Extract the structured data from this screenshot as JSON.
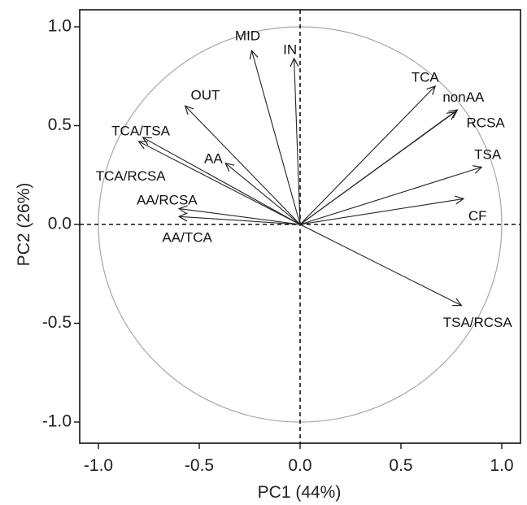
{
  "chart_data": {
    "type": "scatter",
    "subtype": "pca-biplot-loadings",
    "title": "",
    "xlabel": "PC1 (44%)",
    "ylabel": "PC2 (26%)",
    "xlim": [
      -1.0,
      1.0
    ],
    "ylim": [
      -1.0,
      1.0
    ],
    "xticks": [
      -1.0,
      -0.5,
      0.0,
      0.5,
      1.0
    ],
    "yticks": [
      1.0,
      0.5,
      0.0,
      -0.5,
      -1.0
    ],
    "xtick_labels": [
      "-1.0",
      "-0.5",
      "0.0",
      "0.5",
      "1.0"
    ],
    "ytick_labels": [
      "1.0",
      "0.5",
      "0.0",
      "-0.5",
      "-1.0"
    ],
    "correlation_circle_radius": 1.0,
    "reference_lines": [
      0,
      0
    ],
    "grid": false,
    "legend": "none",
    "vectors": [
      {
        "label": "MID",
        "x": -0.24,
        "y": 0.88
      },
      {
        "label": "IN",
        "x": -0.03,
        "y": 0.84
      },
      {
        "label": "OUT",
        "x": -0.57,
        "y": 0.6
      },
      {
        "label": "TCA/TSA",
        "x": -0.8,
        "y": 0.42
      },
      {
        "label": "TCA/RCSA",
        "x": -0.78,
        "y": 0.44
      },
      {
        "label": "AA",
        "x": -0.37,
        "y": 0.31
      },
      {
        "label": "AA/RCSA",
        "x": -0.6,
        "y": 0.08
      },
      {
        "label": "AA/TCA",
        "x": -0.6,
        "y": 0.04
      },
      {
        "label": "TCA",
        "x": 0.67,
        "y": 0.7
      },
      {
        "label": "nonAA",
        "x": 0.78,
        "y": 0.58
      },
      {
        "label": "RCSA",
        "x": 0.77,
        "y": 0.57
      },
      {
        "label": "TSA",
        "x": 0.9,
        "y": 0.29
      },
      {
        "label": "CF",
        "x": 0.81,
        "y": 0.13
      },
      {
        "label": "TSA/RCSA",
        "x": 0.8,
        "y": -0.41
      }
    ],
    "labels": [
      {
        "text": "MID",
        "x": -0.26,
        "y": 0.95,
        "anchor": "middle"
      },
      {
        "text": "IN",
        "x": -0.05,
        "y": 0.88,
        "anchor": "middle"
      },
      {
        "text": "OUT",
        "x": -0.47,
        "y": 0.65,
        "anchor": "middle"
      },
      {
        "text": "TCA/TSA",
        "x": -0.79,
        "y": 0.47,
        "anchor": "middle"
      },
      {
        "text": "TCA/RCSA",
        "x": -0.84,
        "y": 0.24,
        "anchor": "middle"
      },
      {
        "text": "AA",
        "x": -0.43,
        "y": 0.33,
        "anchor": "middle"
      },
      {
        "text": "AA/RCSA",
        "x": -0.66,
        "y": 0.12,
        "anchor": "middle"
      },
      {
        "text": "AA/TCA",
        "x": -0.56,
        "y": -0.07,
        "anchor": "middle"
      },
      {
        "text": "TCA",
        "x": 0.62,
        "y": 0.74,
        "anchor": "middle"
      },
      {
        "text": "nonAA",
        "x": 0.81,
        "y": 0.64,
        "anchor": "middle"
      },
      {
        "text": "RCSA",
        "x": 0.92,
        "y": 0.51,
        "anchor": "middle"
      },
      {
        "text": "TSA",
        "x": 0.93,
        "y": 0.35,
        "anchor": "middle"
      },
      {
        "text": "CF",
        "x": 0.88,
        "y": 0.04,
        "anchor": "middle"
      },
      {
        "text": "TSA/RCSA",
        "x": 0.88,
        "y": -0.5,
        "anchor": "middle"
      }
    ],
    "colors": {
      "arrow": "#222222",
      "circle": "#a8a8a8",
      "frame": "#111111",
      "text": "#222222"
    }
  }
}
